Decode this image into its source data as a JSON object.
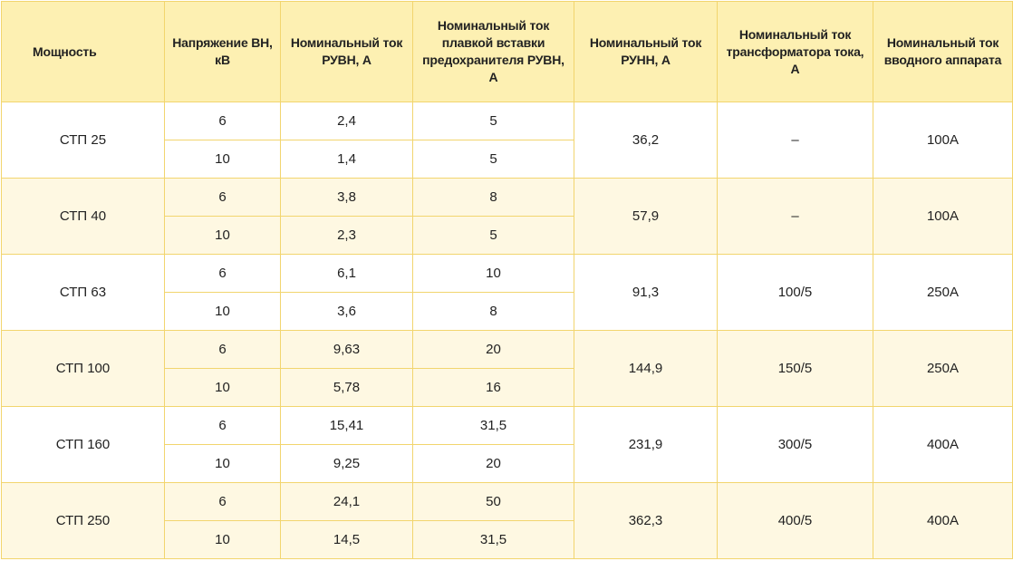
{
  "table": {
    "header": [
      "Мощность",
      "Напряжение ВН, кВ",
      "Номинальный ток РУВН, А",
      "Номинальный ток плавкой вставки предохранителя РУВН, А",
      "Номинальный ток РУНН, А",
      "Номинальный ток трансформатора тока, А",
      "Номинальный ток вводного аппарата"
    ],
    "groups": [
      {
        "power": "СТП 25",
        "rows": [
          [
            "6",
            "2,4",
            "5"
          ],
          [
            "10",
            "1,4",
            "5"
          ]
        ],
        "lv_current": "36,2",
        "ct": "–",
        "input": "100А"
      },
      {
        "power": "СТП 40",
        "rows": [
          [
            "6",
            "3,8",
            "8"
          ],
          [
            "10",
            "2,3",
            "5"
          ]
        ],
        "lv_current": "57,9",
        "ct": "–",
        "input": "100А"
      },
      {
        "power": "СТП 63",
        "rows": [
          [
            "6",
            "6,1",
            "10"
          ],
          [
            "10",
            "3,6",
            "8"
          ]
        ],
        "lv_current": "91,3",
        "ct": "100/5",
        "input": "250А"
      },
      {
        "power": "СТП 100",
        "rows": [
          [
            "6",
            "9,63",
            "20"
          ],
          [
            "10",
            "5,78",
            "16"
          ]
        ],
        "lv_current": "144,9",
        "ct": "150/5",
        "input": "250А"
      },
      {
        "power": "СТП 160",
        "rows": [
          [
            "6",
            "15,41",
            "31,5"
          ],
          [
            "10",
            "9,25",
            "20"
          ]
        ],
        "lv_current": "231,9",
        "ct": "300/5",
        "input": "400А"
      },
      {
        "power": "СТП 250",
        "rows": [
          [
            "6",
            "24,1",
            "50"
          ],
          [
            "10",
            "14,5",
            "31,5"
          ]
        ],
        "lv_current": "362,3",
        "ct": "400/5",
        "input": "400А"
      }
    ]
  }
}
